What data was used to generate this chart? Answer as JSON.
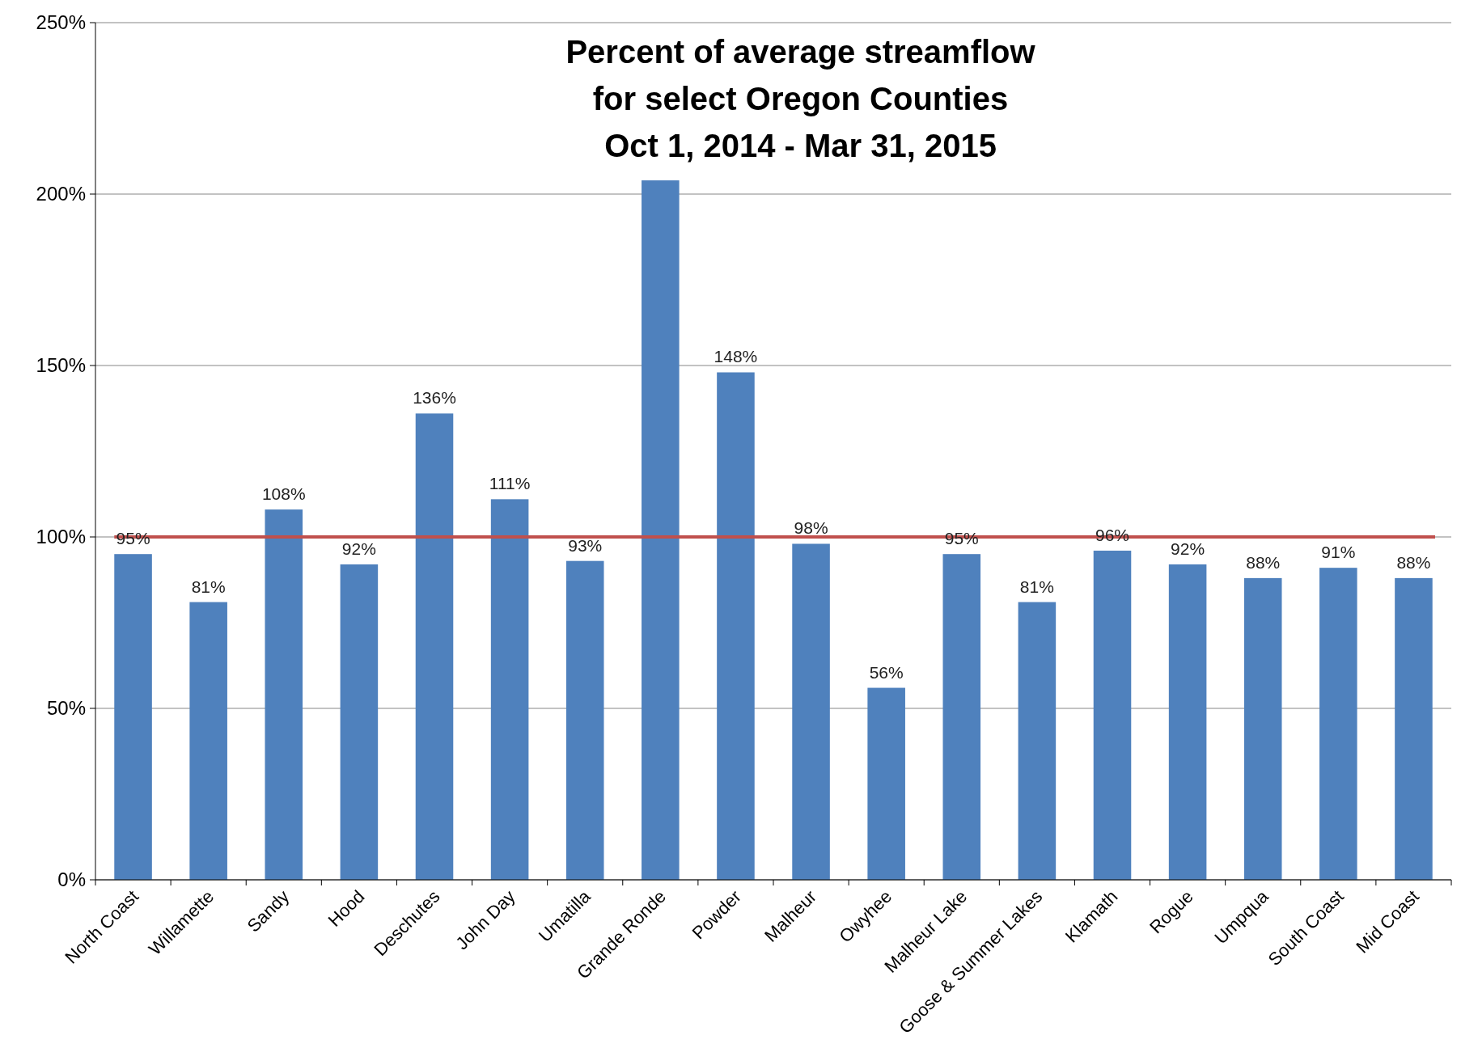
{
  "chart_data": {
    "type": "bar",
    "title": "Percent of average streamflow\nfor select Oregon Counties\nOct 1, 2014 - Mar 31, 2015",
    "categories": [
      "North Coast",
      "Willamette",
      "Sandy",
      "Hood",
      "Deschutes",
      "John Day",
      "Umatilla",
      "Grande Ronde",
      "Powder",
      "Malheur",
      "Owyhee",
      "Malheur Lake",
      "Goose & Summer Lakes",
      "Klamath",
      "Rogue",
      "Umpqua",
      "South Coast",
      "Mid Coast"
    ],
    "values": [
      95,
      81,
      108,
      92,
      136,
      111,
      93,
      204,
      148,
      98,
      56,
      95,
      81,
      96,
      92,
      88,
      91,
      88
    ],
    "value_labels": [
      "95%",
      "81%",
      "108%",
      "92%",
      "136%",
      "111%",
      "93%",
      null,
      "148%",
      "98%",
      "56%",
      "95%",
      "81%",
      "96%",
      "92%",
      "88%",
      "91%",
      "88%"
    ],
    "color": "#4f81bd",
    "ylim": [
      0,
      250
    ],
    "yticks": [
      {
        "value": 0,
        "label": "0%"
      },
      {
        "value": 50,
        "label": "50%"
      },
      {
        "value": 100,
        "label": "100%"
      },
      {
        "value": 150,
        "label": "150%"
      },
      {
        "value": 200,
        "label": "200%"
      },
      {
        "value": 250,
        "label": "250%"
      }
    ],
    "ref_lines": [
      {
        "axis": "y",
        "value": 100,
        "label": null,
        "color": "#c0504d"
      }
    ],
    "grid": "y"
  }
}
